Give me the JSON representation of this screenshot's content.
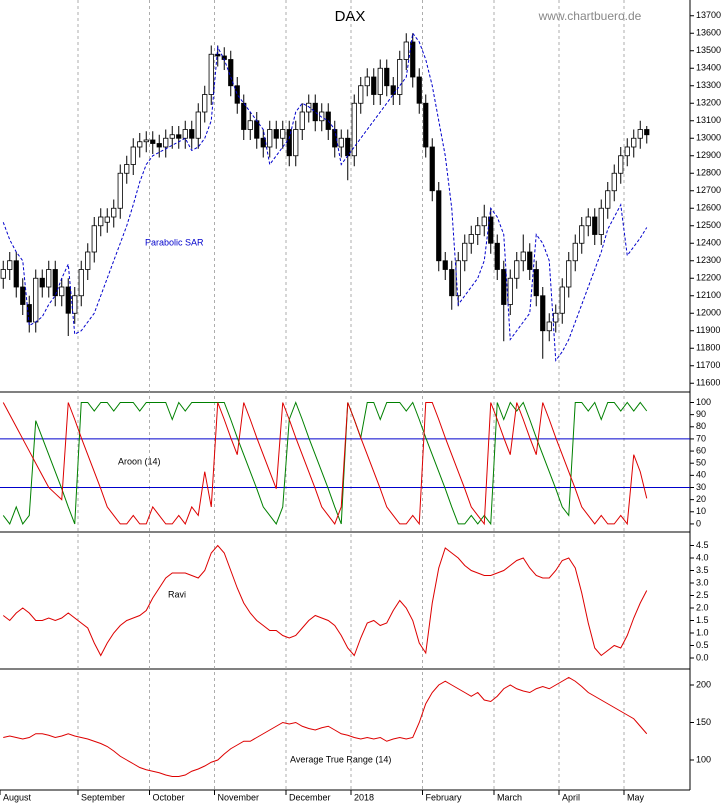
{
  "chart_data": [
    {
      "type": "candlestick",
      "title": "DAX",
      "watermark": "www.chartbuero.de",
      "open": [
        12200,
        12250,
        12300,
        12150,
        12050,
        11950,
        12200,
        12150,
        12250,
        12100,
        12150,
        12000,
        12100,
        12250,
        12350,
        12500,
        12520,
        12550,
        12600,
        12800,
        12850,
        12950,
        12980,
        12990,
        12970,
        12950,
        13000,
        13020,
        13000,
        13050,
        13000,
        13150,
        13250,
        13480,
        13470,
        13450,
        13300,
        13200,
        13050,
        13100,
        13000,
        12950,
        13050,
        13000,
        13050,
        12900,
        13050,
        13150,
        13200,
        13100,
        13150,
        13050,
        12950,
        13000,
        12900,
        13200,
        13300,
        13350,
        13250,
        13400,
        13300,
        13250,
        13450,
        13550,
        13350,
        13200,
        12950,
        12700,
        12300,
        12250,
        12100,
        12300,
        12400,
        12450,
        12500,
        12550,
        12400,
        12250,
        12050,
        12200,
        12300,
        12350,
        12250,
        12100,
        11900,
        11950,
        12000,
        12150,
        12300,
        12400,
        12500,
        12550,
        12450,
        12600,
        12700,
        12800,
        12900,
        12950,
        13000,
        13050
      ],
      "high": [
        12300,
        12350,
        12350,
        12200,
        12100,
        12250,
        12250,
        12300,
        12300,
        12200,
        12200,
        12150,
        12300,
        12400,
        12550,
        12600,
        12600,
        12650,
        12850,
        12900,
        13000,
        13030,
        13040,
        13040,
        13020,
        13050,
        13070,
        13070,
        13100,
        13100,
        13200,
        13300,
        13530,
        13530,
        13520,
        13500,
        13350,
        13250,
        13150,
        13150,
        13050,
        13100,
        13100,
        13100,
        13100,
        13100,
        13200,
        13250,
        13250,
        13200,
        13200,
        13100,
        13050,
        13050,
        13250,
        13350,
        13400,
        13400,
        13450,
        13450,
        13350,
        13500,
        13600,
        13600,
        13400,
        13250,
        13000,
        12750,
        12350,
        12300,
        12350,
        12450,
        12500,
        12550,
        12620,
        12600,
        12450,
        12300,
        12250,
        12350,
        12450,
        12400,
        12300,
        12150,
        12000,
        12050,
        12200,
        12350,
        12450,
        12550,
        12600,
        12600,
        12650,
        12750,
        12850,
        12950,
        13000,
        13050,
        13100,
        13070
      ],
      "low": [
        12140,
        12190,
        12090,
        11990,
        11890,
        11890,
        12090,
        12090,
        12040,
        12040,
        11870,
        11940,
        12040,
        12190,
        12290,
        12440,
        12460,
        12490,
        12540,
        12740,
        12790,
        12890,
        12920,
        12910,
        12890,
        12890,
        12940,
        12940,
        12940,
        12940,
        12940,
        13090,
        13190,
        13410,
        13390,
        13240,
        13140,
        12990,
        12990,
        12940,
        12890,
        12890,
        12940,
        12940,
        12840,
        12840,
        12990,
        13090,
        13040,
        13040,
        12990,
        12890,
        12890,
        12760,
        12840,
        13140,
        13240,
        13190,
        13190,
        13240,
        13190,
        13190,
        13390,
        13290,
        13140,
        12890,
        12640,
        12240,
        12190,
        12020,
        12040,
        12240,
        12340,
        12390,
        12440,
        12340,
        12190,
        11840,
        11990,
        12140,
        12240,
        12190,
        12040,
        11740,
        11840,
        11890,
        11940,
        12090,
        12240,
        12340,
        12440,
        12390,
        12390,
        12540,
        12640,
        12740,
        12840,
        12890,
        12940,
        12970
      ],
      "close": [
        12250,
        12300,
        12150,
        12050,
        11950,
        12200,
        12150,
        12250,
        12100,
        12150,
        12000,
        12100,
        12250,
        12350,
        12500,
        12550,
        12550,
        12600,
        12800,
        12850,
        12950,
        12980,
        12990,
        12970,
        12950,
        13000,
        13020,
        13000,
        13050,
        13000,
        13150,
        13250,
        13480,
        13470,
        13450,
        13300,
        13200,
        13050,
        13100,
        13000,
        12950,
        13050,
        13000,
        13050,
        12900,
        13050,
        13150,
        13200,
        13100,
        13150,
        13050,
        12950,
        13000,
        12900,
        13200,
        13300,
        13350,
        13250,
        13400,
        13300,
        13250,
        13450,
        13550,
        13350,
        13200,
        12950,
        12700,
        12300,
        12250,
        12100,
        12300,
        12400,
        12450,
        12500,
        12550,
        12400,
        12250,
        12050,
        12200,
        12300,
        12350,
        12250,
        12100,
        11900,
        11950,
        12000,
        12150,
        12300,
        12400,
        12500,
        12550,
        12450,
        12600,
        12700,
        12800,
        12900,
        12950,
        13000,
        13050,
        13020
      ],
      "series": [
        {
          "name": "Parabolic SAR",
          "color": "#0000cc",
          "values": [
            12520,
            12420,
            12350,
            12300,
            11930,
            11950,
            11980,
            12050,
            12100,
            12200,
            12280,
            11880,
            11900,
            11950,
            12000,
            12100,
            12200,
            12300,
            12400,
            12500,
            12620,
            12750,
            12850,
            12900,
            12920,
            12940,
            12960,
            12980,
            13000,
            12930,
            12950,
            13000,
            13100,
            13520,
            13450,
            13350,
            13250,
            13200,
            13150,
            13100,
            13050,
            12850,
            12900,
            12950,
            13000,
            13150,
            13200,
            13180,
            13150,
            13120,
            13100,
            13050,
            12850,
            12900,
            12950,
            13000,
            13050,
            13100,
            13150,
            13200,
            13250,
            13300,
            13350,
            13600,
            13550,
            13450,
            13300,
            13100,
            12900,
            12600,
            12050,
            12100,
            12150,
            12200,
            12300,
            12600,
            12550,
            12450,
            11850,
            11900,
            11950,
            12000,
            12450,
            12400,
            12300,
            11730,
            11780,
            11850,
            11950,
            12050,
            12150,
            12250,
            12350,
            12480,
            12550,
            12620,
            12330,
            12380,
            12430,
            12490
          ]
        }
      ],
      "ylim": [
        11550,
        13790
      ],
      "yticks": [
        11600,
        11700,
        11800,
        11900,
        12000,
        12100,
        12200,
        12300,
        12400,
        12500,
        12600,
        12700,
        12800,
        12900,
        13000,
        13100,
        13200,
        13300,
        13400,
        13500,
        13600,
        13700
      ]
    },
    {
      "type": "line",
      "title": "Aroon (14)",
      "series": [
        {
          "color": "#008000",
          "values": [
            7,
            0,
            14,
            0,
            7,
            85,
            71,
            57,
            43,
            29,
            14,
            0,
            100,
            100,
            93,
            100,
            100,
            93,
            100,
            100,
            100,
            93,
            100,
            100,
            100,
            100,
            86,
            100,
            93,
            100,
            100,
            100,
            100,
            100,
            100,
            86,
            71,
            57,
            43,
            29,
            14,
            7,
            0,
            14,
            86,
            100,
            86,
            71,
            57,
            43,
            29,
            14,
            0,
            100,
            86,
            71,
            100,
            100,
            86,
            100,
            100,
            100,
            93,
            100,
            86,
            71,
            57,
            43,
            29,
            14,
            0,
            0,
            7,
            0,
            7,
            0,
            100,
            86,
            100,
            93,
            100,
            86,
            71,
            57,
            43,
            29,
            14,
            7,
            100,
            100,
            93,
            100,
            86,
            100,
            100,
            93,
            100,
            93,
            100,
            93
          ]
        },
        {
          "color": "#dd0000",
          "values": [
            100,
            90,
            80,
            70,
            60,
            50,
            40,
            30,
            25,
            20,
            100,
            86,
            71,
            57,
            43,
            29,
            14,
            7,
            0,
            0,
            7,
            0,
            0,
            14,
            7,
            0,
            0,
            7,
            0,
            14,
            7,
            43,
            14,
            100,
            86,
            71,
            57,
            100,
            86,
            71,
            57,
            43,
            29,
            100,
            86,
            71,
            57,
            43,
            29,
            14,
            7,
            0,
            14,
            100,
            86,
            71,
            57,
            43,
            29,
            14,
            7,
            0,
            0,
            7,
            0,
            100,
            100,
            86,
            71,
            57,
            43,
            29,
            14,
            7,
            0,
            100,
            86,
            71,
            57,
            100,
            86,
            71,
            57,
            100,
            86,
            71,
            57,
            43,
            29,
            14,
            7,
            0,
            7,
            0,
            0,
            7,
            0,
            57,
            43,
            21
          ]
        }
      ],
      "levels": [
        30,
        70
      ],
      "level_color": "#0000cc",
      "ylim": [
        -5,
        107
      ],
      "yticks": [
        0,
        10,
        20,
        30,
        40,
        50,
        60,
        70,
        80,
        90,
        100
      ]
    },
    {
      "type": "line",
      "title": "Ravi",
      "series": [
        {
          "color": "#dd0000",
          "values": [
            1.7,
            1.5,
            1.8,
            2.0,
            1.8,
            1.5,
            1.5,
            1.6,
            1.5,
            1.6,
            1.8,
            1.6,
            1.4,
            1.2,
            0.6,
            0.1,
            0.6,
            1.0,
            1.3,
            1.5,
            1.6,
            1.7,
            1.9,
            2.4,
            2.8,
            3.2,
            3.4,
            3.4,
            3.4,
            3.3,
            3.2,
            3.5,
            4.2,
            4.5,
            4.2,
            3.5,
            2.8,
            2.2,
            1.8,
            1.5,
            1.3,
            1.1,
            1.1,
            0.9,
            0.8,
            0.9,
            1.2,
            1.5,
            1.7,
            1.6,
            1.5,
            1.3,
            0.9,
            0.4,
            0.1,
            0.8,
            1.4,
            1.5,
            1.3,
            1.4,
            1.9,
            2.3,
            2.0,
            1.5,
            0.6,
            0.2,
            2.2,
            3.6,
            4.4,
            4.2,
            4.0,
            3.7,
            3.5,
            3.4,
            3.3,
            3.3,
            3.4,
            3.5,
            3.7,
            3.9,
            4.0,
            3.6,
            3.3,
            3.2,
            3.2,
            3.5,
            3.9,
            4.0,
            3.6,
            2.6,
            1.4,
            0.4,
            0.1,
            0.3,
            0.5,
            0.4,
            0.9,
            1.6,
            2.2,
            2.7
          ]
        }
      ],
      "ylim": [
        -0.4,
        5
      ],
      "yticks": [
        {
          "value": 0,
          "label": "0.0"
        },
        0.5,
        {
          "value": 1,
          "label": "1.0"
        },
        1.5,
        {
          "value": 2,
          "label": "2.0"
        },
        2.5,
        {
          "value": 3,
          "label": "3.0"
        },
        3.5,
        {
          "value": 4,
          "label": "4.0"
        },
        4.5
      ]
    },
    {
      "type": "line",
      "title": "Average True Range (14)",
      "categories": [
        "August",
        null,
        null,
        null,
        null,
        null,
        null,
        null,
        null,
        null,
        null,
        null,
        "September",
        null,
        null,
        null,
        null,
        null,
        null,
        null,
        null,
        null,
        null,
        "October",
        null,
        null,
        null,
        null,
        null,
        null,
        null,
        null,
        null,
        "November",
        null,
        null,
        null,
        null,
        null,
        null,
        null,
        null,
        null,
        null,
        "December",
        null,
        null,
        null,
        null,
        null,
        null,
        null,
        null,
        null,
        "2018",
        null,
        null,
        null,
        null,
        null,
        null,
        null,
        null,
        null,
        null,
        "February",
        null,
        null,
        null,
        null,
        null,
        null,
        null,
        null,
        null,
        null,
        "March",
        null,
        null,
        null,
        null,
        null,
        null,
        null,
        null,
        null,
        "April",
        null,
        null,
        null,
        null,
        null,
        null,
        null,
        null,
        null,
        "May",
        null,
        null,
        null
      ],
      "series": [
        {
          "color": "#dd0000",
          "values": [
            130,
            132,
            130,
            128,
            130,
            135,
            135,
            133,
            130,
            132,
            135,
            132,
            130,
            128,
            125,
            122,
            118,
            112,
            105,
            100,
            95,
            90,
            87,
            85,
            83,
            80,
            78,
            78,
            80,
            85,
            88,
            92,
            97,
            100,
            108,
            115,
            120,
            125,
            125,
            130,
            135,
            140,
            145,
            150,
            148,
            150,
            145,
            142,
            140,
            143,
            145,
            140,
            135,
            133,
            130,
            128,
            130,
            128,
            130,
            125,
            128,
            130,
            128,
            130,
            150,
            175,
            190,
            200,
            205,
            200,
            195,
            190,
            185,
            190,
            180,
            178,
            185,
            195,
            200,
            195,
            192,
            190,
            195,
            198,
            195,
            200,
            205,
            210,
            205,
            198,
            190,
            185,
            180,
            175,
            170,
            165,
            160,
            155,
            145,
            135
          ]
        }
      ],
      "ylim": [
        60,
        220
      ],
      "yticks": [
        100,
        150,
        200
      ]
    }
  ]
}
